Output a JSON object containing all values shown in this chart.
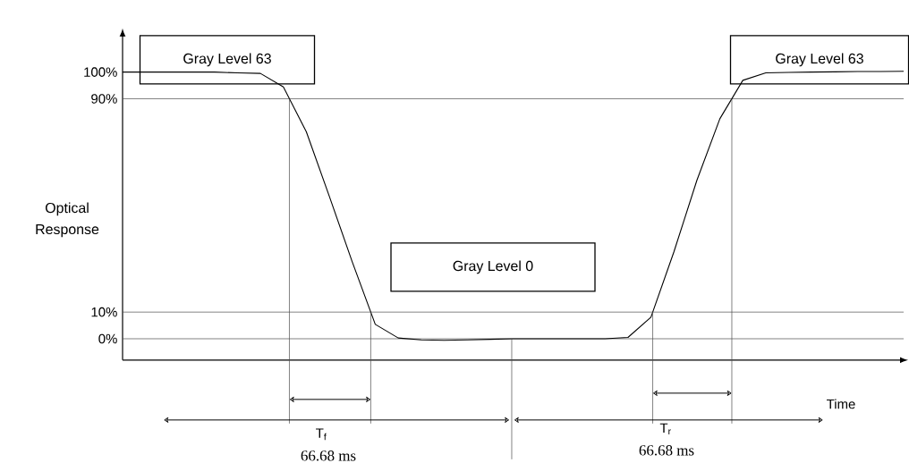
{
  "chart_data": {
    "type": "line",
    "ylabel": "Optical Response",
    "categories": [
      null,
      null,
      null,
      null,
      null,
      null,
      null,
      null,
      null,
      null,
      null,
      null,
      null,
      null,
      null,
      null,
      null,
      null,
      null,
      null,
      null,
      null,
      null,
      null,
      null,
      null,
      null,
      null,
      null,
      null,
      null,
      null,
      null,
      null,
      null
    ],
    "values": [
      100,
      100,
      100,
      100,
      100,
      99.7,
      99.5,
      94.4,
      77.6,
      53.4,
      28.8,
      5.4,
      0.3,
      -0.4,
      -0.6,
      -0.4,
      -0.2,
      0,
      0,
      0,
      0,
      0,
      0.5,
      8.1,
      32.6,
      59.4,
      82.5,
      96.9,
      99.7,
      99.9,
      100,
      100.1,
      100.2,
      100.2,
      100.3
    ],
    "color": "#000000",
    "marker": "none",
    "line_style": "solid",
    "ylim": [
      -8,
      114
    ],
    "yticks": [
      {
        "value": 0,
        "label": "0%"
      },
      {
        "value": 10,
        "label": "10%"
      },
      {
        "value": 90,
        "label": "90%"
      },
      {
        "value": 100,
        "label": "100%"
      }
    ],
    "tick_labels": "y",
    "ref_lines": [
      {
        "axis": "y",
        "value": 90
      },
      {
        "axis": "y",
        "value": 10
      },
      {
        "axis": "y",
        "value": 0
      }
    ],
    "annotations": [
      "Gray Level 63",
      "Gray Level 0",
      "Gray Level 63",
      "T$_{f}$",
      "T$_{r}$",
      "66.68 ms",
      "66.68 ms",
      "Time"
    ]
  }
}
